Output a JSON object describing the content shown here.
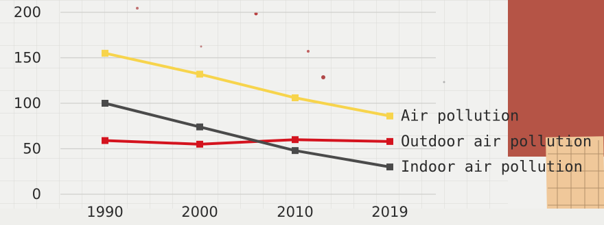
{
  "chart_data": {
    "type": "line",
    "categories": [
      "1990",
      "2000",
      "2010",
      "2019"
    ],
    "series": [
      {
        "name": "Air pollution",
        "values": [
          155,
          132,
          106,
          86
        ],
        "color": "#f7d44c"
      },
      {
        "name": "Outdoor air pollution",
        "values": [
          59,
          55,
          60,
          58
        ],
        "color": "#d4131e"
      },
      {
        "name": "Indoor air pollution",
        "values": [
          100,
          74,
          48,
          30
        ],
        "color": "#4a4a4a"
      }
    ],
    "yticks": [
      0,
      50,
      100,
      150,
      200
    ],
    "ylim": [
      0,
      200
    ],
    "title": "",
    "xlabel": "",
    "ylabel": "",
    "legend_position": "right-of-lines",
    "grid": true
  },
  "decor": {
    "red_block_color": "#b55446",
    "tan_block_color": "#f0c89a"
  }
}
